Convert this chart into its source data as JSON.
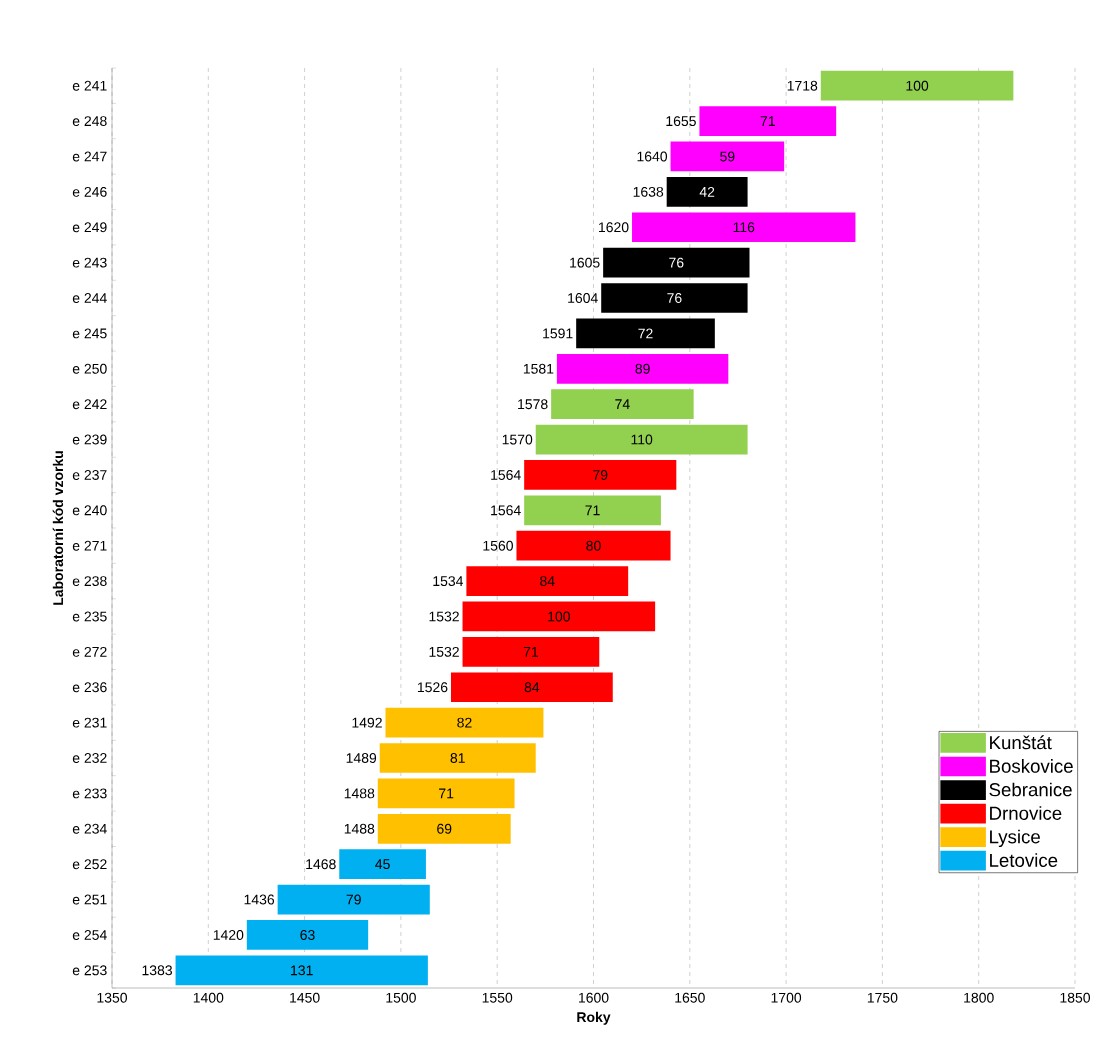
{
  "chart_data": {
    "type": "bar",
    "orientation": "horizontal",
    "xlabel": "Roky",
    "ylabel": "Laboratorní kód vzorku",
    "categories": [
      "e 241",
      "e 248",
      "e 247",
      "e 246",
      "e 249",
      "e 243",
      "e 244",
      "e 245",
      "e 250",
      "e 242",
      "e 239",
      "e 237",
      "e 240",
      "e 271",
      "e 238",
      "e 235",
      "e 272",
      "e 236",
      "e 231",
      "e 232",
      "e 233",
      "e 234",
      "e 252",
      "e 251",
      "e 254",
      "e 253"
    ],
    "series": [
      {
        "name": "Kunštát",
        "color": "#92d050",
        "base": [
          1718,
          null,
          null,
          null,
          null,
          null,
          null,
          null,
          null,
          1578,
          1570,
          null,
          1564,
          null,
          null,
          null,
          null,
          null,
          null,
          null,
          null,
          null,
          null,
          null,
          null,
          null
        ],
        "values": [
          100,
          null,
          null,
          null,
          null,
          null,
          null,
          null,
          null,
          74,
          110,
          null,
          71,
          null,
          null,
          null,
          null,
          null,
          null,
          null,
          null,
          null,
          null,
          null,
          null,
          null
        ]
      },
      {
        "name": "Boskovice",
        "color": "#ff00ff",
        "base": [
          null,
          1655,
          1640,
          null,
          1620,
          null,
          null,
          null,
          1581,
          null,
          null,
          null,
          null,
          null,
          null,
          null,
          null,
          null,
          null,
          null,
          null,
          null,
          null,
          null,
          null,
          null
        ],
        "values": [
          null,
          71,
          59,
          null,
          116,
          null,
          null,
          null,
          89,
          null,
          null,
          null,
          null,
          null,
          null,
          null,
          null,
          null,
          null,
          null,
          null,
          null,
          null,
          null,
          null,
          null
        ]
      },
      {
        "name": "Sebranice",
        "color": "#000000",
        "base": [
          null,
          null,
          null,
          1638,
          null,
          1605,
          1604,
          1591,
          null,
          null,
          null,
          null,
          null,
          null,
          null,
          null,
          null,
          null,
          null,
          null,
          null,
          null,
          null,
          null,
          null,
          null
        ],
        "values": [
          null,
          null,
          null,
          42,
          null,
          76,
          76,
          72,
          null,
          null,
          null,
          null,
          null,
          null,
          null,
          null,
          null,
          null,
          null,
          null,
          null,
          null,
          null,
          null,
          null,
          null
        ]
      },
      {
        "name": "Drnovice",
        "color": "#ff0000",
        "base": [
          null,
          null,
          null,
          null,
          null,
          null,
          null,
          null,
          null,
          null,
          null,
          1564,
          null,
          1560,
          1534,
          1532,
          1532,
          1526,
          null,
          null,
          null,
          null,
          null,
          null,
          null,
          null
        ],
        "values": [
          null,
          null,
          null,
          null,
          null,
          null,
          null,
          null,
          null,
          null,
          null,
          79,
          null,
          80,
          84,
          100,
          71,
          84,
          null,
          null,
          null,
          null,
          null,
          null,
          null,
          null
        ]
      },
      {
        "name": "Lysice",
        "color": "#ffc000",
        "base": [
          null,
          null,
          null,
          null,
          null,
          null,
          null,
          null,
          null,
          null,
          null,
          null,
          null,
          null,
          null,
          null,
          null,
          null,
          1492,
          1489,
          1488,
          1488,
          null,
          null,
          null,
          null
        ],
        "values": [
          null,
          null,
          null,
          null,
          null,
          null,
          null,
          null,
          null,
          null,
          null,
          null,
          null,
          null,
          null,
          null,
          null,
          null,
          82,
          81,
          71,
          69,
          null,
          null,
          null,
          null
        ]
      },
      {
        "name": "Letovice",
        "color": "#00b0f0",
        "base": [
          null,
          null,
          null,
          null,
          null,
          null,
          null,
          null,
          null,
          null,
          null,
          null,
          null,
          null,
          null,
          null,
          null,
          null,
          null,
          null,
          null,
          null,
          1468,
          1436,
          1420,
          1383
        ],
        "values": [
          null,
          null,
          null,
          null,
          null,
          null,
          null,
          null,
          null,
          null,
          null,
          null,
          null,
          null,
          null,
          null,
          null,
          null,
          null,
          null,
          null,
          null,
          45,
          79,
          63,
          131
        ]
      }
    ],
    "data_labels": true,
    "annotations": [
      {
        "text": "1718",
        "x": 1718,
        "y": "e 241"
      },
      {
        "text": "1655",
        "x": 1655,
        "y": "e 248"
      },
      {
        "text": "1640",
        "x": 1640,
        "y": "e 247"
      },
      {
        "text": "1638",
        "x": 1638,
        "y": "e 246"
      },
      {
        "text": "1620",
        "x": 1620,
        "y": "e 249"
      },
      {
        "text": "1605",
        "x": 1605,
        "y": "e 243"
      },
      {
        "text": "1604",
        "x": 1604,
        "y": "e 244"
      },
      {
        "text": "1591",
        "x": 1591,
        "y": "e 245"
      },
      {
        "text": "1581",
        "x": 1581,
        "y": "e 250"
      },
      {
        "text": "1578",
        "x": 1578,
        "y": "e 242"
      },
      {
        "text": "1570",
        "x": 1570,
        "y": "e 239"
      },
      {
        "text": "1564",
        "x": 1564,
        "y": "e 237"
      },
      {
        "text": "1564",
        "x": 1564,
        "y": "e 240"
      },
      {
        "text": "1560",
        "x": 1560,
        "y": "e 271"
      },
      {
        "text": "1534",
        "x": 1534,
        "y": "e 238"
      },
      {
        "text": "1532",
        "x": 1532,
        "y": "e 235"
      },
      {
        "text": "1532",
        "x": 1532,
        "y": "e 272"
      },
      {
        "text": "1526",
        "x": 1526,
        "y": "e 236"
      },
      {
        "text": "1492",
        "x": 1492,
        "y": "e 231"
      },
      {
        "text": "1489",
        "x": 1489,
        "y": "e 232"
      },
      {
        "text": "1488",
        "x": 1488,
        "y": "e 233"
      },
      {
        "text": "1488",
        "x": 1488,
        "y": "e 234"
      },
      {
        "text": "1468",
        "x": 1468,
        "y": "e 252"
      },
      {
        "text": "1436",
        "x": 1436,
        "y": "e 251"
      },
      {
        "text": "1420",
        "x": 1420,
        "y": "e 254"
      },
      {
        "text": "1383",
        "x": 1383,
        "y": "e 253"
      }
    ],
    "xlim": [
      1350,
      1850
    ],
    "xticks": [
      1350,
      1400,
      1450,
      1500,
      1550,
      1600,
      1650,
      1700,
      1750,
      1800,
      1850
    ],
    "grid": "x",
    "legend": "bottom right"
  }
}
